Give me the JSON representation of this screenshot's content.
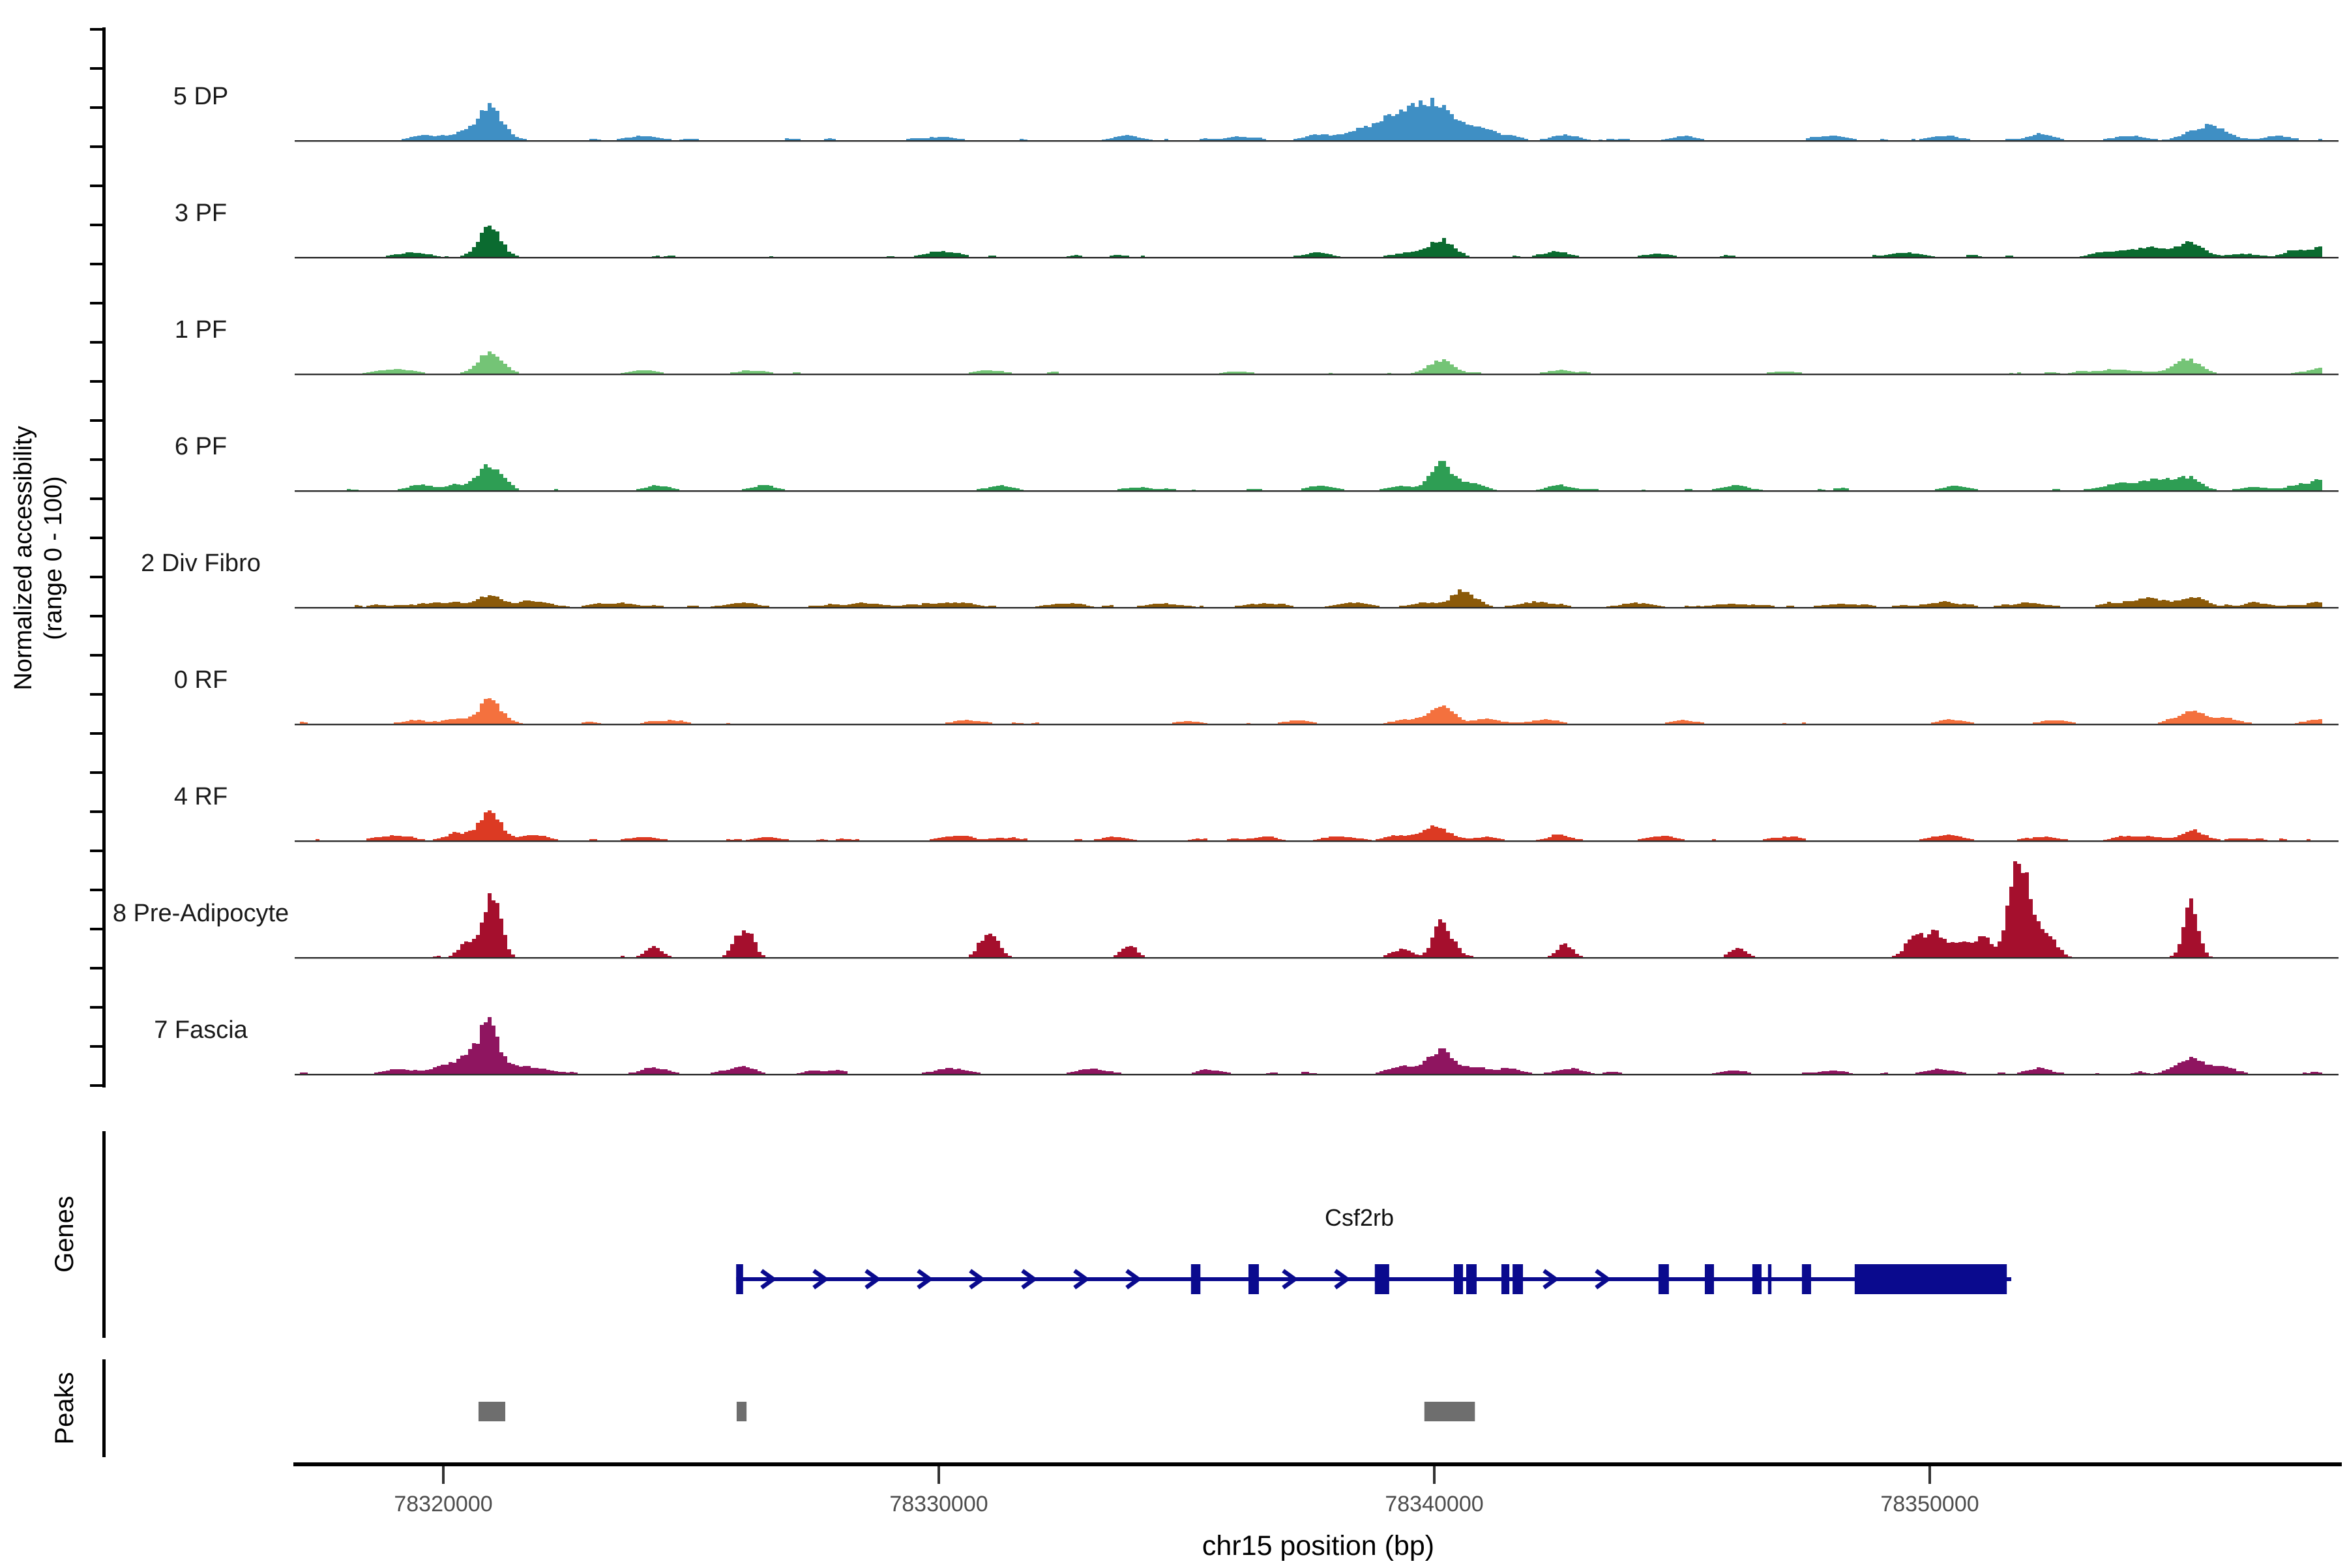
{
  "chart_data": {
    "type": "area",
    "title": "",
    "xlabel": "chr15 position (bp)",
    "ylabel_line1": "Normalized accessibility",
    "ylabel_line2": "(range 0 - 100)",
    "ylim": [
      0,
      100
    ],
    "grid": false,
    "region": {
      "chrom": "chr15",
      "start_bp": 78317105,
      "end_bp": 78357895
    },
    "x_ticks": [
      {
        "bp": 78320000,
        "label": "78320000"
      },
      {
        "bp": 78330000,
        "label": "78330000"
      },
      {
        "bp": 78340000,
        "label": "78340000"
      },
      {
        "bp": 78350000,
        "label": "78350000"
      }
    ],
    "tracks": [
      {
        "label": "5 DP",
        "color": "#3F8FC4",
        "seed": 1,
        "noise": {
          "amp": 2.5,
          "density": 0.45
        },
        "peaks": [
          [
            78320900,
            30,
            500
          ],
          [
            78320350,
            6,
            400
          ],
          [
            78319600,
            5,
            500
          ],
          [
            78339550,
            28,
            900
          ],
          [
            78340100,
            19,
            500
          ],
          [
            78338900,
            9,
            700
          ],
          [
            78340700,
            11,
            500
          ],
          [
            78341200,
            6,
            600
          ],
          [
            78338300,
            6,
            500
          ],
          [
            78324000,
            4,
            600
          ],
          [
            78330000,
            3,
            600
          ],
          [
            78333800,
            4,
            500
          ],
          [
            78336000,
            3,
            500
          ],
          [
            78337600,
            5,
            500
          ],
          [
            78342600,
            5,
            500
          ],
          [
            78345000,
            3,
            500
          ],
          [
            78348000,
            4,
            600
          ],
          [
            78350300,
            4,
            500
          ],
          [
            78352200,
            5,
            500
          ],
          [
            78354000,
            4,
            600
          ],
          [
            78355600,
            13,
            700
          ],
          [
            78357000,
            4,
            500
          ]
        ]
      },
      {
        "label": "3 PF",
        "color": "#0B6B30",
        "seed": 2,
        "noise": {
          "amp": 2.2,
          "density": 0.4
        },
        "peaks": [
          [
            78320900,
            26,
            450
          ],
          [
            78340100,
            16,
            500
          ],
          [
            78339400,
            4,
            500
          ],
          [
            78319300,
            4,
            500
          ],
          [
            78330000,
            5,
            550
          ],
          [
            78337600,
            4,
            500
          ],
          [
            78342400,
            5,
            500
          ],
          [
            78344500,
            3,
            500
          ],
          [
            78349500,
            4,
            600
          ],
          [
            78353900,
            6,
            900
          ],
          [
            78354500,
            6,
            500
          ],
          [
            78355200,
            13,
            550
          ],
          [
            78356300,
            3,
            500
          ],
          [
            78357400,
            6,
            500
          ],
          [
            78357900,
            8,
            400
          ]
        ]
      },
      {
        "label": "1 PF",
        "color": "#74C476",
        "seed": 3,
        "noise": {
          "amp": 2.0,
          "density": 0.35
        },
        "peaks": [
          [
            78320900,
            19,
            480
          ],
          [
            78340100,
            12,
            500
          ],
          [
            78319000,
            4,
            700
          ],
          [
            78324000,
            3,
            500
          ],
          [
            78326100,
            3,
            400
          ],
          [
            78331000,
            3,
            500
          ],
          [
            78336000,
            2,
            500
          ],
          [
            78342500,
            3,
            500
          ],
          [
            78347000,
            2,
            500
          ],
          [
            78353800,
            3,
            1200
          ],
          [
            78355170,
            13,
            500
          ],
          [
            78357900,
            6,
            450
          ]
        ]
      },
      {
        "label": "6 PF",
        "color": "#2E9E54",
        "seed": 4,
        "noise": {
          "amp": 2.4,
          "density": 0.45
        },
        "peaks": [
          [
            78320900,
            23,
            480
          ],
          [
            78320200,
            5,
            400
          ],
          [
            78340100,
            25,
            450
          ],
          [
            78340700,
            7,
            450
          ],
          [
            78339300,
            4,
            500
          ],
          [
            78319500,
            5,
            500
          ],
          [
            78324300,
            4,
            500
          ],
          [
            78326400,
            4,
            450
          ],
          [
            78331200,
            4,
            500
          ],
          [
            78334000,
            3,
            500
          ],
          [
            78337700,
            4,
            500
          ],
          [
            78342500,
            4,
            500
          ],
          [
            78346000,
            4,
            500
          ],
          [
            78350500,
            4,
            500
          ],
          [
            78353900,
            7,
            800
          ],
          [
            78354600,
            8,
            500
          ],
          [
            78355170,
            12,
            500
          ],
          [
            78356500,
            3,
            500
          ],
          [
            78357400,
            5,
            500
          ],
          [
            78357900,
            9,
            400
          ]
        ]
      },
      {
        "label": "2 Div Fibro",
        "color": "#8B5A09",
        "seed": 5,
        "noise": {
          "amp": 2.8,
          "density": 0.75
        },
        "peaks": [
          [
            78320900,
            10,
            500
          ],
          [
            78319800,
            4,
            800
          ],
          [
            78321800,
            4,
            700
          ],
          [
            78340550,
            14,
            400
          ],
          [
            78339800,
            4,
            600
          ],
          [
            78323500,
            3,
            800
          ],
          [
            78326000,
            4,
            600
          ],
          [
            78328500,
            3,
            800
          ],
          [
            78330200,
            4,
            700
          ],
          [
            78332500,
            3,
            700
          ],
          [
            78334500,
            3,
            700
          ],
          [
            78336500,
            3,
            700
          ],
          [
            78338300,
            4,
            600
          ],
          [
            78342000,
            4,
            700
          ],
          [
            78344000,
            3,
            700
          ],
          [
            78346000,
            3,
            700
          ],
          [
            78348200,
            3,
            700
          ],
          [
            78350200,
            4,
            700
          ],
          [
            78352000,
            3,
            700
          ],
          [
            78354300,
            7,
            900
          ],
          [
            78355300,
            9,
            500
          ],
          [
            78356600,
            3,
            600
          ],
          [
            78357800,
            4,
            500
          ]
        ]
      },
      {
        "label": "0 RF",
        "color": "#F4713E",
        "seed": 6,
        "noise": {
          "amp": 2.0,
          "density": 0.5
        },
        "peaks": [
          [
            78320900,
            22,
            450
          ],
          [
            78320200,
            4,
            400
          ],
          [
            78340100,
            17,
            500
          ],
          [
            78339400,
            4,
            500
          ],
          [
            78341000,
            4,
            500
          ],
          [
            78319400,
            3,
            500
          ],
          [
            78324500,
            3,
            500
          ],
          [
            78330500,
            3,
            500
          ],
          [
            78335000,
            2,
            500
          ],
          [
            78337200,
            3,
            500
          ],
          [
            78342200,
            4,
            500
          ],
          [
            78345000,
            3,
            500
          ],
          [
            78350400,
            4,
            500
          ],
          [
            78352500,
            3,
            500
          ],
          [
            78355250,
            12,
            550
          ],
          [
            78355950,
            5,
            450
          ],
          [
            78357800,
            4,
            500
          ]
        ]
      },
      {
        "label": "4 RF",
        "color": "#DC3A23",
        "seed": 7,
        "noise": {
          "amp": 2.6,
          "density": 0.55
        },
        "peaks": [
          [
            78320900,
            26,
            450
          ],
          [
            78320250,
            6,
            450
          ],
          [
            78321800,
            5,
            500
          ],
          [
            78340000,
            12,
            550
          ],
          [
            78339200,
            4,
            500
          ],
          [
            78341000,
            3,
            500
          ],
          [
            78319000,
            4,
            600
          ],
          [
            78324000,
            3,
            600
          ],
          [
            78326500,
            3,
            500
          ],
          [
            78330300,
            4,
            600
          ],
          [
            78333500,
            3,
            500
          ],
          [
            78336500,
            3,
            500
          ],
          [
            78338000,
            4,
            500
          ],
          [
            78342500,
            4,
            500
          ],
          [
            78344500,
            4,
            500
          ],
          [
            78347000,
            3,
            500
          ],
          [
            78350300,
            5,
            600
          ],
          [
            78352300,
            3,
            500
          ],
          [
            78354200,
            4,
            800
          ],
          [
            78355280,
            9,
            450
          ],
          [
            78356200,
            2,
            400
          ]
        ]
      },
      {
        "label": "8 Pre-Adipocyte",
        "color": "#A50F2D",
        "seed": 8,
        "noise": {
          "amp": 1.5,
          "density": 0.12
        },
        "peaks": [
          [
            78320430,
            13,
            300
          ],
          [
            78320900,
            46,
            350
          ],
          [
            78321050,
            20,
            250
          ],
          [
            78324200,
            10,
            300
          ],
          [
            78325900,
            17,
            250
          ],
          [
            78326150,
            19,
            250
          ],
          [
            78330850,
            15,
            250
          ],
          [
            78331100,
            17,
            250
          ],
          [
            78333800,
            11,
            300
          ],
          [
            78339300,
            7,
            400
          ],
          [
            78340080,
            32,
            300
          ],
          [
            78340350,
            10,
            300
          ],
          [
            78342600,
            12,
            300
          ],
          [
            78346100,
            9,
            300
          ],
          [
            78349650,
            18,
            350
          ],
          [
            78350100,
            22,
            400
          ],
          [
            78350600,
            13,
            350
          ],
          [
            78351050,
            20,
            300
          ],
          [
            78351750,
            95,
            380
          ],
          [
            78352150,
            24,
            300
          ],
          [
            78352450,
            12,
            300
          ],
          [
            78355230,
            52,
            280
          ]
        ]
      },
      {
        "label": "7 Fascia",
        "color": "#8F1560",
        "seed": 9,
        "noise": {
          "amp": 2.6,
          "density": 0.5
        },
        "peaks": [
          [
            78319000,
            4,
            500
          ],
          [
            78319900,
            6,
            500
          ],
          [
            78320350,
            10,
            450
          ],
          [
            78320650,
            13,
            400
          ],
          [
            78320900,
            39,
            350
          ],
          [
            78321300,
            7,
            500
          ],
          [
            78321900,
            5,
            500
          ],
          [
            78324200,
            5,
            500
          ],
          [
            78326000,
            6,
            500
          ],
          [
            78327500,
            3,
            500
          ],
          [
            78330200,
            5,
            600
          ],
          [
            78333000,
            4,
            500
          ],
          [
            78335500,
            3,
            500
          ],
          [
            78339400,
            7,
            600
          ],
          [
            78340100,
            22,
            450
          ],
          [
            78340800,
            6,
            500
          ],
          [
            78341500,
            4,
            500
          ],
          [
            78342700,
            5,
            500
          ],
          [
            78346000,
            3,
            500
          ],
          [
            78348000,
            3,
            500
          ],
          [
            78350200,
            4,
            600
          ],
          [
            78352200,
            4,
            500
          ],
          [
            78355200,
            14,
            550
          ],
          [
            78355900,
            5,
            500
          ]
        ]
      }
    ],
    "gene_track": {
      "section_label": "Genes",
      "name": "Csf2rb",
      "color": "#0A0A8E",
      "strand": "+",
      "start_bp": 78325910,
      "end_bp": 78351645,
      "exons_bp": [
        [
          78325910,
          78326050
        ],
        [
          78335090,
          78335280
        ],
        [
          78336250,
          78336460
        ],
        [
          78338800,
          78339090
        ],
        [
          78340395,
          78340580
        ],
        [
          78340645,
          78340855
        ],
        [
          78341355,
          78341515
        ],
        [
          78341580,
          78341790
        ],
        [
          78344525,
          78344735
        ],
        [
          78345460,
          78345645
        ],
        [
          78346420,
          78346605
        ],
        [
          78346735,
          78346805
        ],
        [
          78347420,
          78347605
        ],
        [
          78348485,
          78351555
        ]
      ]
    },
    "peak_track": {
      "section_label": "Peaks",
      "color": "#6E6E6E",
      "intervals_bp": [
        [
          78320710,
          78321250
        ],
        [
          78325920,
          78326120
        ],
        [
          78339800,
          78340820
        ]
      ]
    }
  }
}
